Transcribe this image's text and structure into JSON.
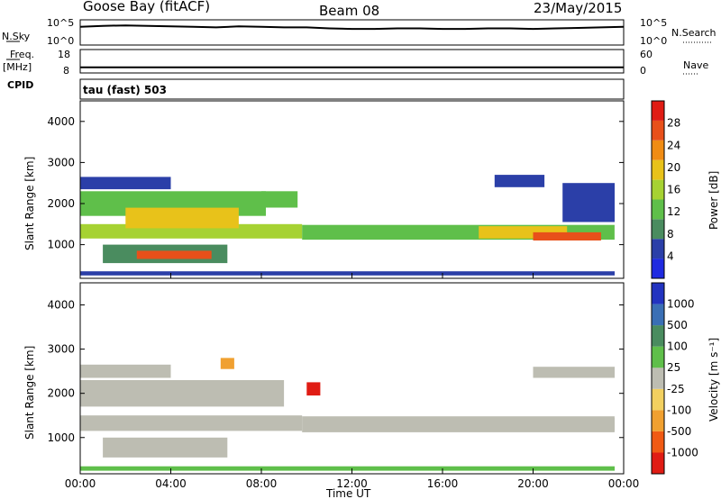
{
  "header": {
    "station": "Goose Bay (fitACF)",
    "beam": "Beam 08",
    "date": "23/May/2015",
    "param_label": "tau (fast) 503"
  },
  "colors": {
    "power": [
      "#1f2ae0",
      "#2b3fa8",
      "#4a8c5f",
      "#5fbf4a",
      "#a6d232",
      "#e8c21a",
      "#f08c14",
      "#e8501a",
      "#e01c14"
    ],
    "velocity": [
      "#e01c14",
      "#f05a14",
      "#f0a030",
      "#f2d060",
      "#bdbdb2",
      "#5fbf4a",
      "#4a8c5f",
      "#3a6fb5",
      "#2233c0"
    ]
  },
  "chart_data": [
    {
      "type": "line",
      "panel": "nsky-nsearch",
      "title": "",
      "left_label": "N.Sky",
      "right_label": "N.Search",
      "left_ticks": [
        "10^5",
        "10^0"
      ],
      "right_ticks": [
        "10^5",
        "10^0"
      ],
      "x": [
        0,
        1,
        2,
        3,
        4,
        5,
        6,
        7,
        8,
        9,
        10,
        11,
        12,
        13,
        14,
        15,
        16,
        17,
        18,
        19,
        20,
        21,
        22,
        23,
        24
      ],
      "series": [
        {
          "values": [
            3.6,
            3.8,
            3.9,
            3.8,
            3.7,
            3.6,
            3.5,
            3.7,
            3.6,
            3.5,
            3.5,
            3.3,
            3.2,
            3.2,
            3.3,
            3.3,
            3.2,
            3.2,
            3.3,
            3.3,
            3.2,
            3.3,
            3.4,
            3.5,
            3.6
          ]
        }
      ],
      "ylim": [
        0,
        5
      ],
      "scale": "log"
    },
    {
      "type": "line",
      "panel": "freq-nave",
      "title": "",
      "left_label": "Freq.",
      "left_units": "[MHz]",
      "right_label": "Nave",
      "left_ticks": [
        "18",
        "8"
      ],
      "right_ticks": [
        "60",
        "0"
      ],
      "x": [
        0,
        24
      ],
      "series": [
        {
          "values": [
            10.4,
            10.4
          ]
        }
      ],
      "ylim": [
        8,
        18
      ],
      "extra_label": "CPID"
    },
    {
      "type": "heatmap",
      "panel": "power",
      "ylabel": "Slant Range [km]",
      "yticks": [
        1000,
        2000,
        3000,
        4000
      ],
      "ylim": [
        180,
        4500
      ],
      "xlim": [
        0,
        24
      ],
      "colorbar_label": "Power [dB]",
      "colorbar_ticks": [
        "4",
        "8",
        "12",
        "16",
        "20",
        "24",
        "28"
      ],
      "bands": [
        {
          "x0": 0.0,
          "x1": 9.8,
          "r0": 1150,
          "r1": 1500,
          "v": 16
        },
        {
          "x0": 9.8,
          "x1": 23.6,
          "r0": 1120,
          "r1": 1480,
          "v": 13
        },
        {
          "x0": 0.0,
          "x1": 8.2,
          "r0": 1700,
          "r1": 2300,
          "v": 14
        },
        {
          "x0": 2.0,
          "x1": 7.0,
          "r0": 1400,
          "r1": 1900,
          "v": 20
        },
        {
          "x0": 0.0,
          "x1": 4.0,
          "r0": 2350,
          "r1": 2650,
          "v": 7
        },
        {
          "x0": 1.0,
          "x1": 6.5,
          "r0": 550,
          "r1": 1000,
          "v": 9
        },
        {
          "x0": 2.5,
          "x1": 5.8,
          "r0": 650,
          "r1": 850,
          "v": 26
        },
        {
          "x0": 17.6,
          "x1": 21.5,
          "r0": 1150,
          "r1": 1450,
          "v": 18
        },
        {
          "x0": 20.0,
          "x1": 23.0,
          "r0": 1100,
          "r1": 1300,
          "v": 25
        },
        {
          "x0": 8.0,
          "x1": 9.6,
          "r0": 1900,
          "r1": 2300,
          "v": 12
        },
        {
          "x0": 18.3,
          "x1": 20.5,
          "r0": 2400,
          "r1": 2700,
          "v": 6
        },
        {
          "x0": 21.3,
          "x1": 23.6,
          "r0": 1550,
          "r1": 2500,
          "v": 6
        },
        {
          "x0": 0.0,
          "x1": 23.6,
          "r0": 250,
          "r1": 350,
          "v": 5
        }
      ],
      "xticks": [
        "00:00",
        "04:00",
        "08:00",
        "12:00",
        "16:00",
        "20:00",
        "00:00"
      ]
    },
    {
      "type": "heatmap",
      "panel": "velocity",
      "ylabel": "Slant Range [km]",
      "xlabel": "Time UT",
      "yticks": [
        1000,
        2000,
        3000,
        4000
      ],
      "ylim": [
        180,
        4500
      ],
      "xlim": [
        0,
        24
      ],
      "colorbar_label": "Velocity [m s⁻¹]",
      "colorbar_ticks": [
        "-1000",
        "-500",
        "-100",
        "-25",
        "25",
        "100",
        "500",
        "1000"
      ],
      "bands": [
        {
          "x0": 0.0,
          "x1": 9.8,
          "r0": 1150,
          "r1": 1500,
          "v": 0
        },
        {
          "x0": 9.8,
          "x1": 23.6,
          "r0": 1120,
          "r1": 1480,
          "v": 0
        },
        {
          "x0": 0.0,
          "x1": 9.0,
          "r0": 1700,
          "r1": 2300,
          "v": 0
        },
        {
          "x0": 0.0,
          "x1": 4.0,
          "r0": 2350,
          "r1": 2650,
          "v": 0
        },
        {
          "x0": 1.0,
          "x1": 6.5,
          "r0": 550,
          "r1": 1000,
          "v": 0
        },
        {
          "x0": 17.6,
          "x1": 23.6,
          "r0": 1150,
          "r1": 1450,
          "v": 0
        },
        {
          "x0": 20.0,
          "x1": 23.6,
          "r0": 2350,
          "r1": 2600,
          "v": 0
        },
        {
          "x0": 6.2,
          "x1": 6.8,
          "r0": 2550,
          "r1": 2800,
          "v": -300
        },
        {
          "x0": 10.0,
          "x1": 10.6,
          "r0": 1950,
          "r1": 2250,
          "v": -1200
        },
        {
          "x0": 0.0,
          "x1": 23.6,
          "r0": 250,
          "r1": 350,
          "v": 60
        }
      ],
      "xticks": [
        "00:00",
        "04:00",
        "08:00",
        "12:00",
        "16:00",
        "20:00",
        "00:00"
      ]
    }
  ]
}
